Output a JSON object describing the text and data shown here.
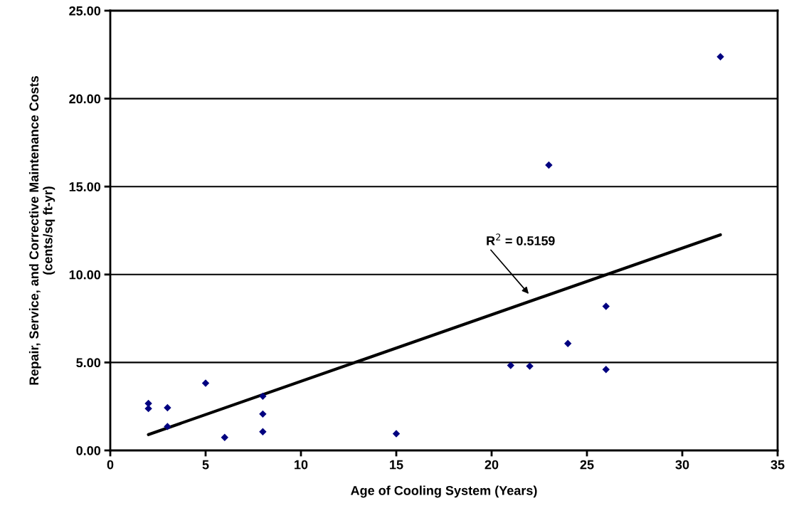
{
  "chart_data": {
    "type": "scatter",
    "xlabel": "Age of Cooling System (Years)",
    "ylabel": "Repair, Service, and Corrective Maintenance Costs\n(cents/sq ft-yr)",
    "series": [
      {
        "marker": "diamond",
        "color": "#000080",
        "x": [
          2,
          2,
          3,
          3,
          5,
          6,
          8,
          8,
          8,
          15,
          21,
          22,
          23,
          24,
          26,
          26,
          32
        ],
        "values": [
          2.67,
          2.38,
          2.43,
          1.36,
          3.82,
          0.74,
          3.08,
          2.07,
          1.06,
          0.95,
          4.83,
          4.79,
          16.22,
          6.08,
          8.19,
          4.6,
          22.38
        ]
      },
      {
        "type": "line",
        "color": "#000000",
        "x": [
          2,
          32
        ],
        "values": [
          0.9,
          12.26
        ]
      }
    ],
    "annotations": [
      "R$^{2}$ = 0.5159"
    ],
    "xlim": [
      0,
      35
    ],
    "xticks": [
      0,
      5,
      10,
      15,
      20,
      25,
      30,
      35
    ],
    "ylim": [
      0,
      25
    ],
    "yticks": [
      {
        "value": 0,
        "label": "0.00"
      },
      {
        "value": 5,
        "label": "5.00"
      },
      {
        "value": 10,
        "label": "10.00"
      },
      {
        "value": 15,
        "label": "15.00"
      },
      {
        "value": 20,
        "label": "20.00"
      },
      {
        "value": 25,
        "label": "25.00"
      }
    ],
    "grid": "y",
    "legend": false
  }
}
